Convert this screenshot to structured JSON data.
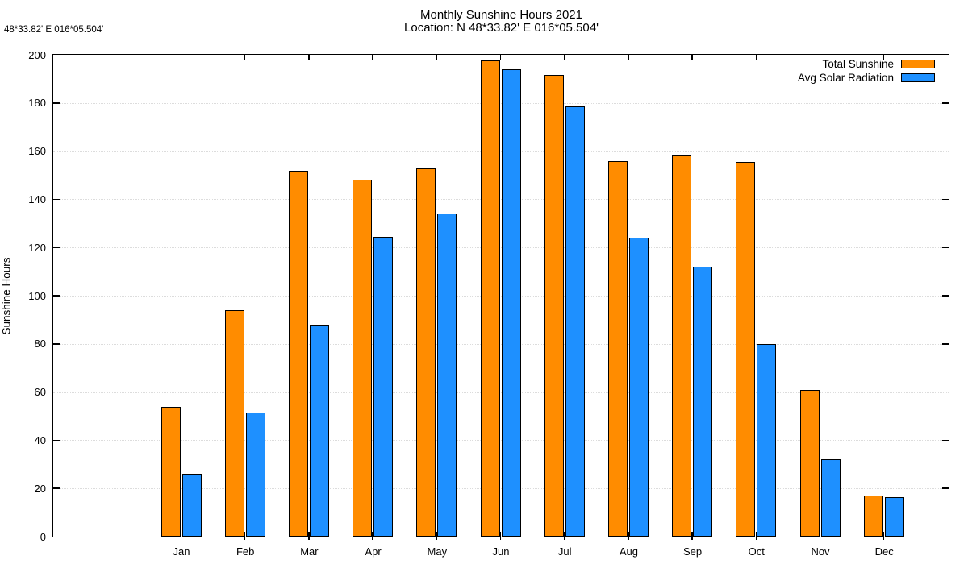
{
  "header": {
    "corner_annotation": "48*33.82'  E 016*05.504'"
  },
  "chart_data": {
    "type": "bar",
    "title": "Monthly Sunshine Hours 2021",
    "subtitle": "Location: N 48*33.82'  E 016*05.504'",
    "xlabel": "",
    "ylabel": "Sunshine Hours",
    "ylim": [
      0,
      200
    ],
    "ytick_step": 20,
    "grid": "horizontal dotted lines at each y tick",
    "legend_position": "top-right inside plot",
    "categories": [
      "Jan",
      "Feb",
      "Mar",
      "Apr",
      "May",
      "Jun",
      "Jul",
      "Aug",
      "Sep",
      "Oct",
      "Nov",
      "Dec"
    ],
    "series": [
      {
        "name": "Total Sunshine",
        "color": "#FF8C00",
        "values": [
          54,
          94,
          152,
          148,
          153,
          197.5,
          191.5,
          156,
          158.5,
          155.5,
          61,
          17
        ]
      },
      {
        "name": "Avg Solar Radiation",
        "color": "#1E90FF",
        "values": [
          26,
          51.5,
          88,
          124.5,
          134,
          194,
          178.5,
          124,
          112,
          80,
          32,
          16.5
        ]
      }
    ]
  }
}
